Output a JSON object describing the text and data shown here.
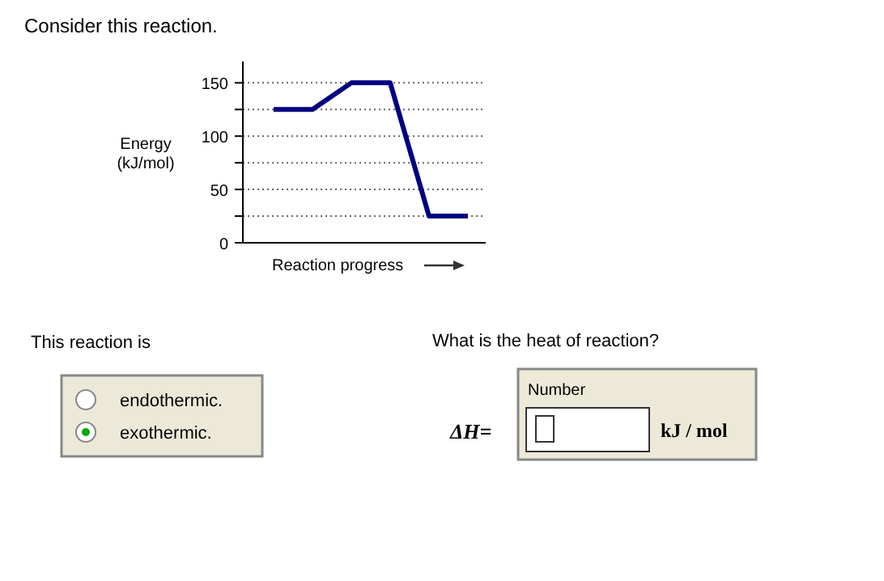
{
  "chart_data": {
    "type": "line",
    "title": "Consider this reaction.",
    "ylabel": "Energy\n(kJ/mol)",
    "xlabel": "Reaction progress",
    "categories": [
      null,
      null,
      null,
      null,
      null,
      null
    ],
    "series": [
      {
        "color": "#000080",
        "values": [
          125,
          125,
          150,
          150,
          25,
          25
        ]
      }
    ],
    "ylim": [
      0,
      170
    ],
    "yticks": [
      0,
      {
        "value": 25,
        "label": null
      },
      50,
      {
        "value": 75,
        "label": null
      },
      100,
      {
        "value": 125,
        "label": null
      },
      150
    ],
    "tick_labels": "y",
    "grid": "y",
    "marker": "none",
    "line_style": "solid",
    "annotations": [
      "This reaction is",
      "endothermic.",
      "exothermic.",
      "What is the heat of reaction?",
      "Number",
      "ΔH=",
      "kJ / mol"
    ]
  }
}
